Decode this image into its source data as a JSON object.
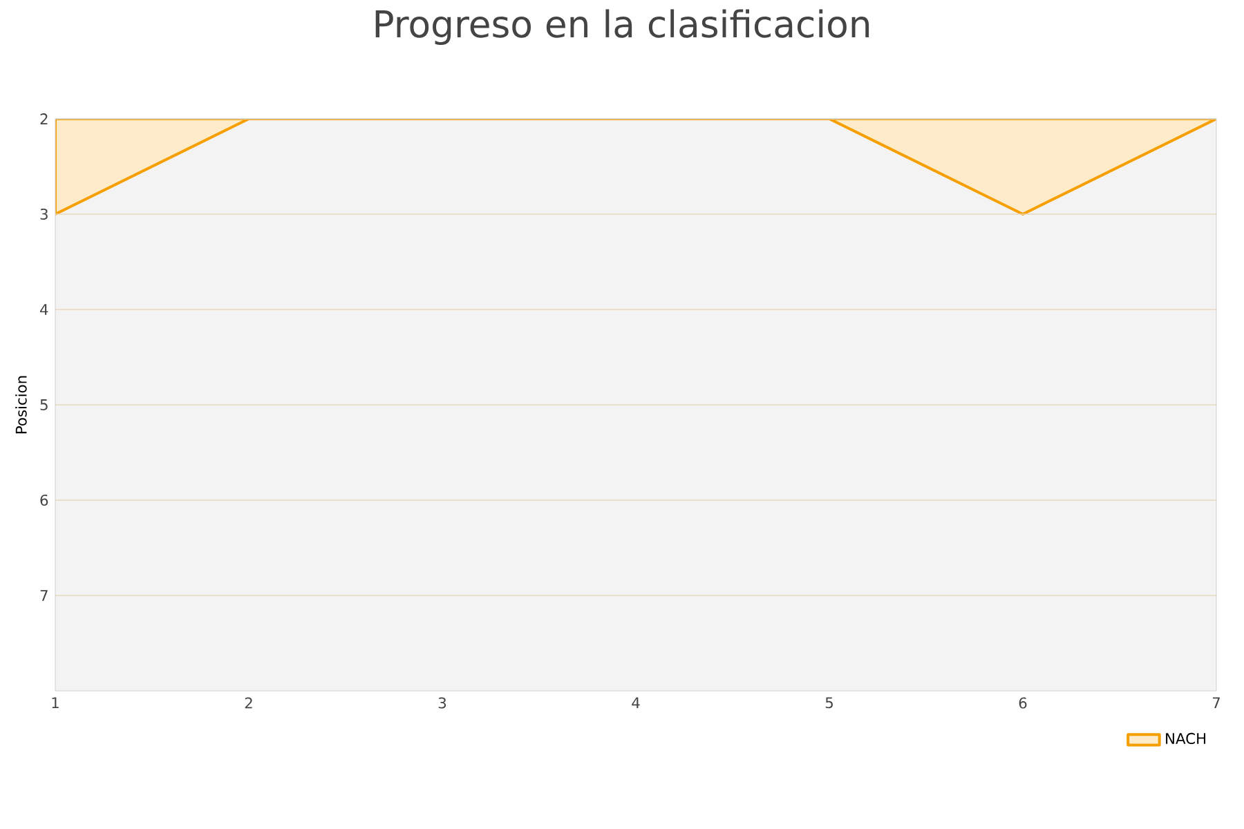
{
  "chart_data": {
    "type": "area",
    "title": "Progreso en la clasificacion",
    "ylabel": "Posicion",
    "x": [
      1,
      2,
      3,
      4,
      5,
      6,
      7
    ],
    "series": [
      {
        "name": "NACH",
        "color": "#fdebca",
        "values": [
          3,
          2,
          2,
          2,
          2,
          3,
          2
        ]
      }
    ],
    "xlim": [
      1,
      7
    ],
    "xticks": [
      1,
      2,
      3,
      4,
      5,
      6,
      7
    ],
    "ylim": [
      8,
      2
    ],
    "yticks": [
      2,
      3,
      4,
      5,
      6,
      7
    ],
    "grid": "y",
    "legend": "bottom right"
  }
}
